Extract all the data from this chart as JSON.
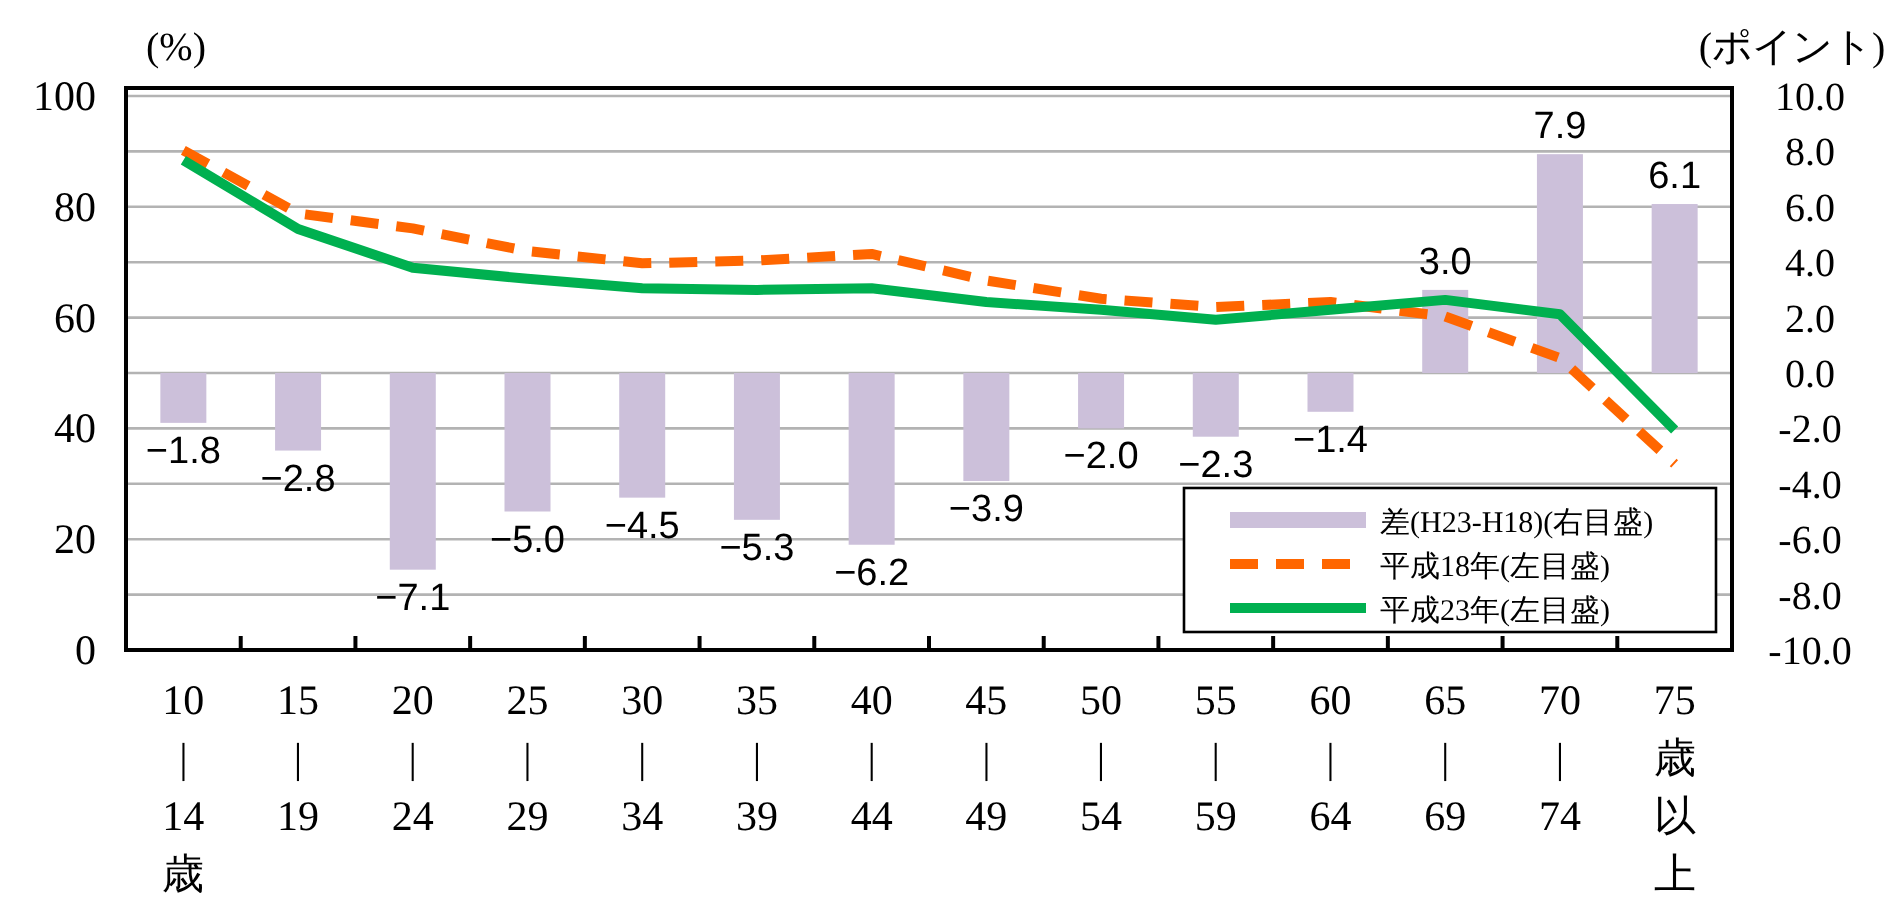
{
  "chart_data": {
    "type": "bar",
    "ylabel": "(%)",
    "y2label": "(ポイント)",
    "categories": [
      "10\n|\n14\n歳",
      "15\n|\n19",
      "20\n|\n24",
      "25\n|\n29",
      "30\n|\n34",
      "35\n|\n39",
      "40\n|\n44",
      "45\n|\n49",
      "50\n|\n54",
      "55\n|\n59",
      "60\n|\n64",
      "65\n|\n69",
      "70\n|\n74",
      "75\n歳以上"
    ],
    "series": [
      {
        "name": "差(H23-H18)(右目盛)",
        "type": "bar",
        "axis": "y2",
        "color": "#ccc0da",
        "values": [
          -1.8,
          -2.8,
          -7.1,
          -5.0,
          -4.5,
          -5.3,
          -6.2,
          -3.9,
          -2.0,
          -2.3,
          -1.4,
          3.0,
          7.9,
          6.1
        ],
        "value_labels": [
          "−1.8",
          "−2.8",
          "−7.1",
          "−5.0",
          "−4.5",
          "−5.3",
          "−6.2",
          "−3.9",
          "−2.0",
          "−2.3",
          "−1.4",
          "3.0",
          "7.9",
          "6.1"
        ]
      },
      {
        "name": "平成18年(左目盛)",
        "type": "line",
        "line_style": "dashed",
        "color": "#ff6600",
        "values": [
          90.2,
          78.8,
          76.1,
          72,
          69.8,
          70.3,
          71.5,
          66.7,
          63.4,
          61.9,
          62.8,
          60.2,
          52.7,
          33.6
        ]
      },
      {
        "name": "平成23年(左目盛)",
        "type": "line",
        "line_style": "solid",
        "color": "#00b050",
        "values": [
          88.4,
          76,
          69,
          67,
          65.3,
          65,
          65.3,
          62.8,
          61.4,
          59.6,
          61.4,
          63.2,
          60.6,
          39.7
        ]
      }
    ],
    "ylim": [
      0,
      100
    ],
    "yticks": [
      0,
      {
        "value": 10,
        "label": null
      },
      20,
      {
        "value": 30,
        "label": null
      },
      40,
      {
        "value": 50,
        "label": null
      },
      60,
      {
        "value": 70,
        "label": null
      },
      80,
      {
        "value": 90,
        "label": null
      },
      100
    ],
    "y2lim": [
      -10,
      10
    ],
    "y2ticks": [
      {
        "value": 10,
        "label": "10.0"
      },
      {
        "value": 8,
        "label": "8.0"
      },
      {
        "value": 6,
        "label": "6.0"
      },
      {
        "value": 4,
        "label": "4.0"
      },
      {
        "value": 2,
        "label": "2.0"
      },
      {
        "value": 0,
        "label": "0.0"
      },
      {
        "value": -2,
        "label": "-2.0"
      },
      {
        "value": -4,
        "label": "-4.0"
      },
      {
        "value": -6,
        "label": "-6.0"
      },
      {
        "value": -8,
        "label": "-8.0"
      },
      {
        "value": -10,
        "label": "-10.0"
      }
    ],
    "grid": "y",
    "legend": "bottom right"
  }
}
